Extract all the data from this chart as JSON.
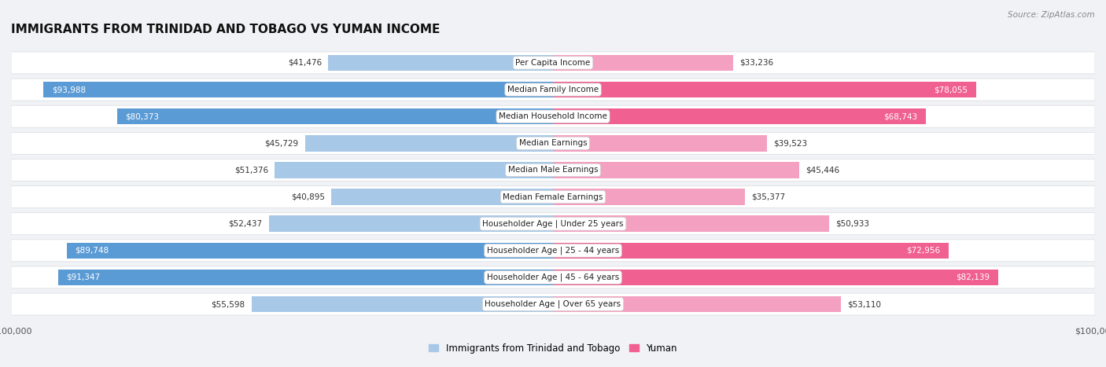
{
  "title": "IMMIGRANTS FROM TRINIDAD AND TOBAGO VS YUMAN INCOME",
  "source": "Source: ZipAtlas.com",
  "categories": [
    "Per Capita Income",
    "Median Family Income",
    "Median Household Income",
    "Median Earnings",
    "Median Male Earnings",
    "Median Female Earnings",
    "Householder Age | Under 25 years",
    "Householder Age | 25 - 44 years",
    "Householder Age | 45 - 64 years",
    "Householder Age | Over 65 years"
  ],
  "left_values": [
    41476,
    93988,
    80373,
    45729,
    51376,
    40895,
    52437,
    89748,
    91347,
    55598
  ],
  "right_values": [
    33236,
    78055,
    68743,
    39523,
    45446,
    35377,
    50933,
    72956,
    82139,
    53110
  ],
  "left_labels": [
    "$41,476",
    "$93,988",
    "$80,373",
    "$45,729",
    "$51,376",
    "$40,895",
    "$52,437",
    "$89,748",
    "$91,347",
    "$55,598"
  ],
  "right_labels": [
    "$33,236",
    "$78,055",
    "$68,743",
    "$39,523",
    "$45,446",
    "$35,377",
    "$50,933",
    "$72,956",
    "$82,139",
    "$53,110"
  ],
  "left_color_light": "#a8c8e8",
  "left_color_dark": "#5b9bd5",
  "right_color_light": "#f4a0c0",
  "right_color_dark": "#f06090",
  "max_value": 100000,
  "legend_left": "Immigrants from Trinidad and Tobago",
  "legend_right": "Yuman",
  "background_color": "#f0f2f5",
  "row_bg_color": "#ffffff",
  "row_border_color": "#d8dce0",
  "threshold_dark": 60000,
  "title_fontsize": 11,
  "label_fontsize": 7.5,
  "source_fontsize": 7.5
}
